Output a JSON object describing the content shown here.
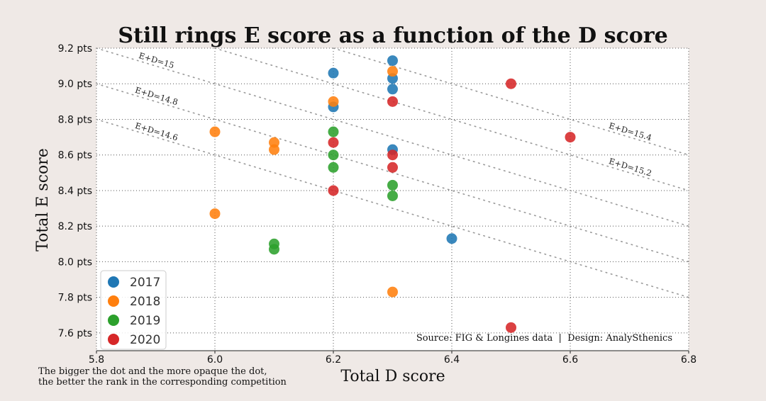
{
  "chart_data": {
    "type": "scatter",
    "title": "Still rings E score as a function of the D score",
    "xlabel": "Total D score",
    "ylabel": "Total E score",
    "xlim": [
      5.8,
      6.8
    ],
    "ylim": [
      7.5,
      9.2
    ],
    "x_ticks": [
      "5.8",
      "6.0",
      "6.2",
      "6.4",
      "6.6",
      "6.8"
    ],
    "y_ticks": [
      "7.6 pts",
      "7.8 pts",
      "8.0 pts",
      "8.2 pts",
      "8.4 pts",
      "8.6 pts",
      "8.8 pts",
      "9.0 pts",
      "9.2 pts"
    ],
    "grid": true,
    "legend_position": "bottom-left",
    "iso_lines": [
      {
        "label": "E+D=15",
        "sum": 15.0
      },
      {
        "label": "E+D=14.8",
        "sum": 14.8
      },
      {
        "label": "E+D=14.6",
        "sum": 14.6
      },
      {
        "label": "E+D=15.4",
        "sum": 15.4
      },
      {
        "label": "E+D=15.2",
        "sum": 15.2
      }
    ],
    "series": [
      {
        "name": "2017",
        "color": "#1f77b4",
        "points": [
          {
            "x": 6.2,
            "y": 9.06
          },
          {
            "x": 6.2,
            "y": 8.87
          },
          {
            "x": 6.3,
            "y": 9.13
          },
          {
            "x": 6.3,
            "y": 9.03
          },
          {
            "x": 6.3,
            "y": 8.97
          },
          {
            "x": 6.3,
            "y": 8.63
          },
          {
            "x": 6.4,
            "y": 8.13
          }
        ]
      },
      {
        "name": "2018",
        "color": "#ff7f0e",
        "points": [
          {
            "x": 6.0,
            "y": 8.73
          },
          {
            "x": 6.0,
            "y": 8.27
          },
          {
            "x": 6.1,
            "y": 8.67
          },
          {
            "x": 6.1,
            "y": 8.63
          },
          {
            "x": 6.2,
            "y": 8.9
          },
          {
            "x": 6.3,
            "y": 9.07
          },
          {
            "x": 6.3,
            "y": 7.83
          }
        ]
      },
      {
        "name": "2019",
        "color": "#2ca02c",
        "points": [
          {
            "x": 6.2,
            "y": 8.73
          },
          {
            "x": 6.2,
            "y": 8.6
          },
          {
            "x": 6.2,
            "y": 8.53
          },
          {
            "x": 6.1,
            "y": 8.1
          },
          {
            "x": 6.1,
            "y": 8.07
          },
          {
            "x": 6.3,
            "y": 8.43
          },
          {
            "x": 6.3,
            "y": 8.37
          }
        ]
      },
      {
        "name": "2020",
        "color": "#d62728",
        "points": [
          {
            "x": 6.2,
            "y": 8.67
          },
          {
            "x": 6.2,
            "y": 8.4
          },
          {
            "x": 6.3,
            "y": 8.9
          },
          {
            "x": 6.3,
            "y": 8.6
          },
          {
            "x": 6.3,
            "y": 8.53
          },
          {
            "x": 6.5,
            "y": 9.0
          },
          {
            "x": 6.6,
            "y": 8.7
          },
          {
            "x": 6.5,
            "y": 7.63
          }
        ]
      }
    ],
    "source": "Source: FIG & Longines data  |  Design: AnalySthenics",
    "note": [
      "The bigger the dot and the more opaque the dot,",
      "the better the rank in the corresponding competition"
    ]
  }
}
